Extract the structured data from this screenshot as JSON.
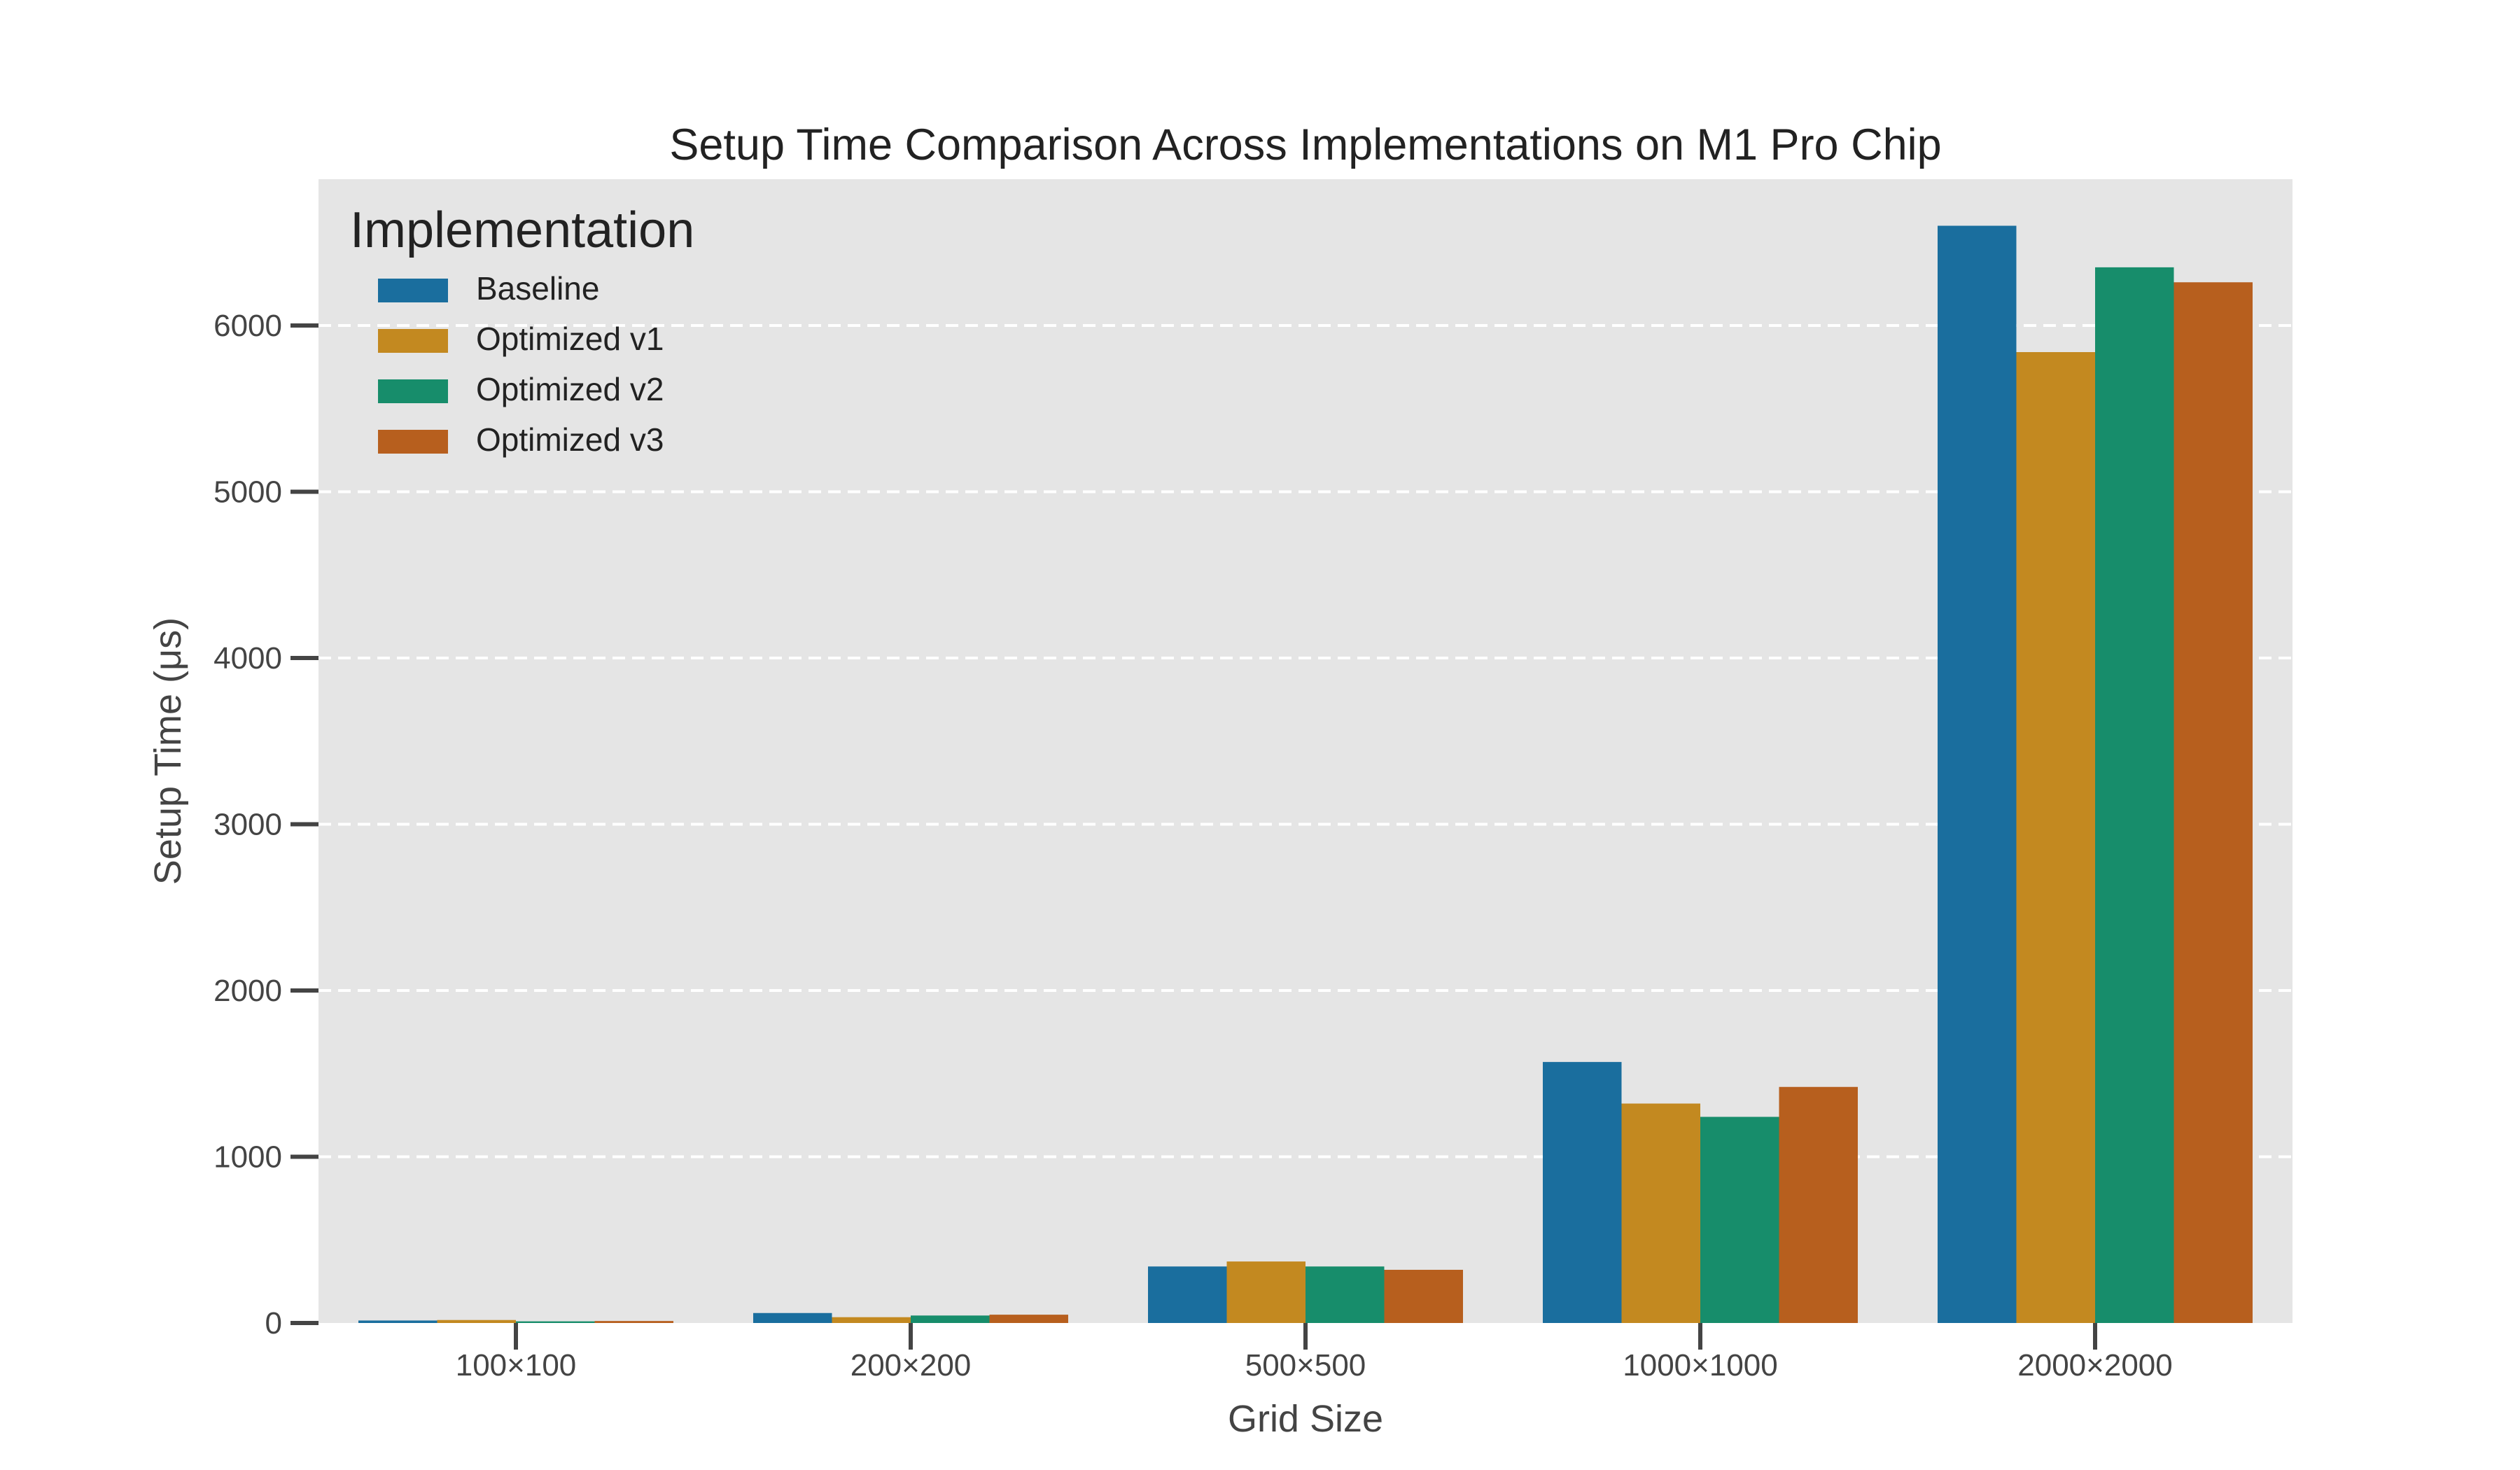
{
  "chart_data": {
    "type": "bar",
    "title": "Setup Time Comparison Across Implementations on M1 Pro Chip",
    "xlabel": "Grid Size",
    "ylabel": "Setup Time (μs)",
    "categories": [
      "100×100",
      "200×200",
      "500×500",
      "1000×1000",
      "2000×2000"
    ],
    "series": [
      {
        "name": "Baseline",
        "color": "#1a6e9e",
        "values": [
          15,
          60,
          340,
          1570,
          6600
        ]
      },
      {
        "name": "Optimized v1",
        "color": "#c38920",
        "values": [
          18,
          35,
          370,
          1320,
          5840
        ]
      },
      {
        "name": "Optimized v2",
        "color": "#178d6b",
        "values": [
          10,
          45,
          340,
          1240,
          6350
        ]
      },
      {
        "name": "Optimized v3",
        "color": "#b75f1e",
        "values": [
          12,
          50,
          320,
          1420,
          6260
        ]
      }
    ],
    "ylim": [
      0,
      6880
    ],
    "yticks": [
      0,
      1000,
      2000,
      3000,
      4000,
      5000,
      6000
    ],
    "grid": true,
    "grid_style": "dashed horizontal",
    "legend": {
      "title": "Implementation",
      "placement": "top-left"
    },
    "background": "#e5e5e5"
  }
}
